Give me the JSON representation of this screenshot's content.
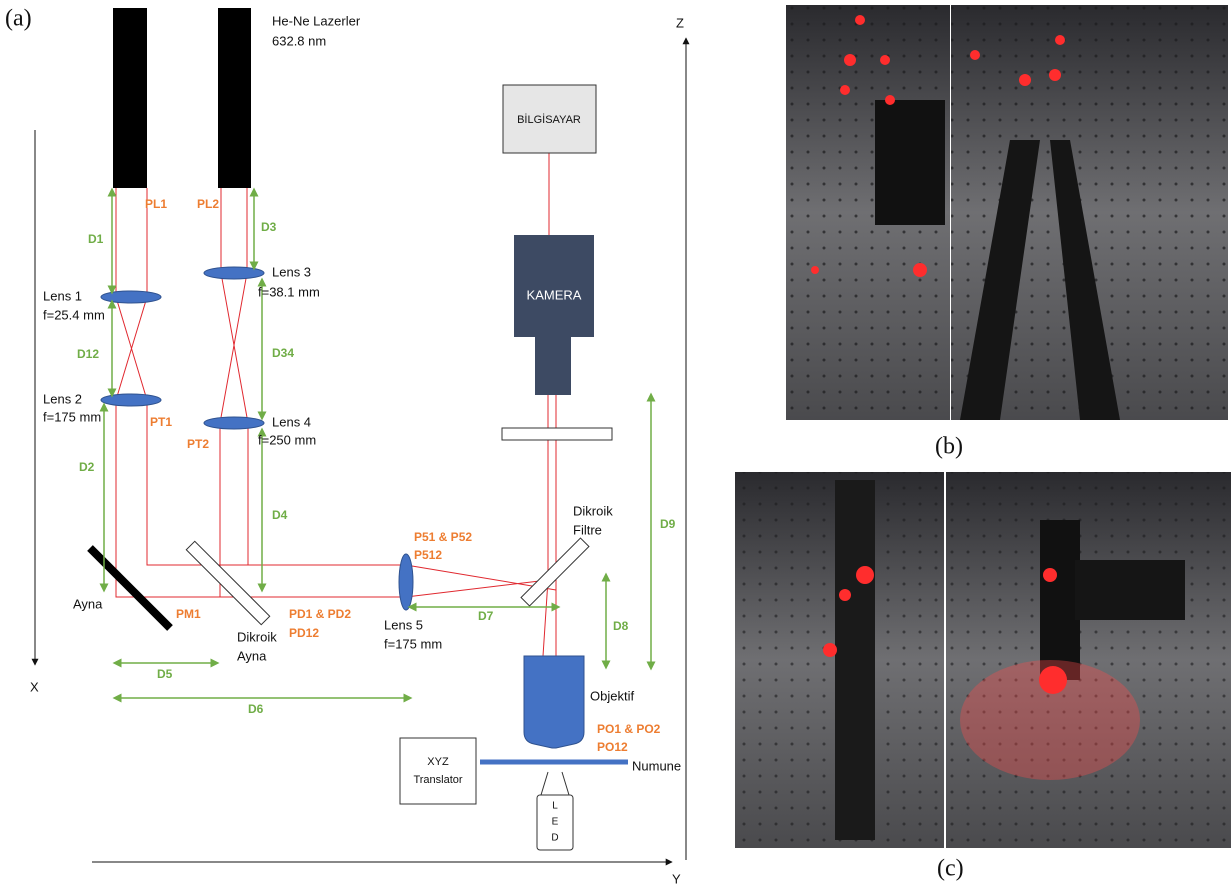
{
  "panels": {
    "a": "(a)",
    "b": "(b)",
    "c": "(c)"
  },
  "axes": {
    "x": "X",
    "y": "Y",
    "z": "Z"
  },
  "lasers": {
    "label": "He-Ne Lazerler",
    "wavelength": "632.8 nm"
  },
  "lenses": [
    {
      "name": "Lens 1",
      "focal": "f=25.4 mm"
    },
    {
      "name": "Lens 2",
      "focal": "f=175 mm"
    },
    {
      "name": "Lens 3",
      "focal": "f=38.1 mm"
    },
    {
      "name": "Lens 4",
      "focal": "f=250 mm"
    },
    {
      "name": "Lens 5",
      "focal": "f=175 mm"
    }
  ],
  "components": {
    "mirror": "Ayna",
    "dichroic_mirror": [
      "Dikroik",
      "Ayna"
    ],
    "dichroic_filter": [
      "Dikroik",
      "Filtre"
    ],
    "computer": "BİLGİSAYAR",
    "camera": "KAMERA",
    "objective": "Objektif",
    "sample": "Numune",
    "translator": [
      "XYZ",
      "Translator"
    ],
    "led": [
      "L",
      "E",
      "D"
    ]
  },
  "powers": {
    "pl1": "PL1",
    "pl2": "PL2",
    "pt1": "PT1",
    "pt2": "PT2",
    "pm1": "PM1",
    "pd": [
      "PD1 & PD2",
      "PD12"
    ],
    "p5": [
      "P51 & P52",
      "P512"
    ],
    "po": [
      "PO1 & PO2",
      "PO12"
    ]
  },
  "distances": {
    "d1": "D1",
    "d3": "D3",
    "d12": "D12",
    "d34": "D34",
    "d2": "D2",
    "d4": "D4",
    "d5": "D5",
    "d6": "D6",
    "d7": "D7",
    "d8": "D8",
    "d9": "D9"
  }
}
